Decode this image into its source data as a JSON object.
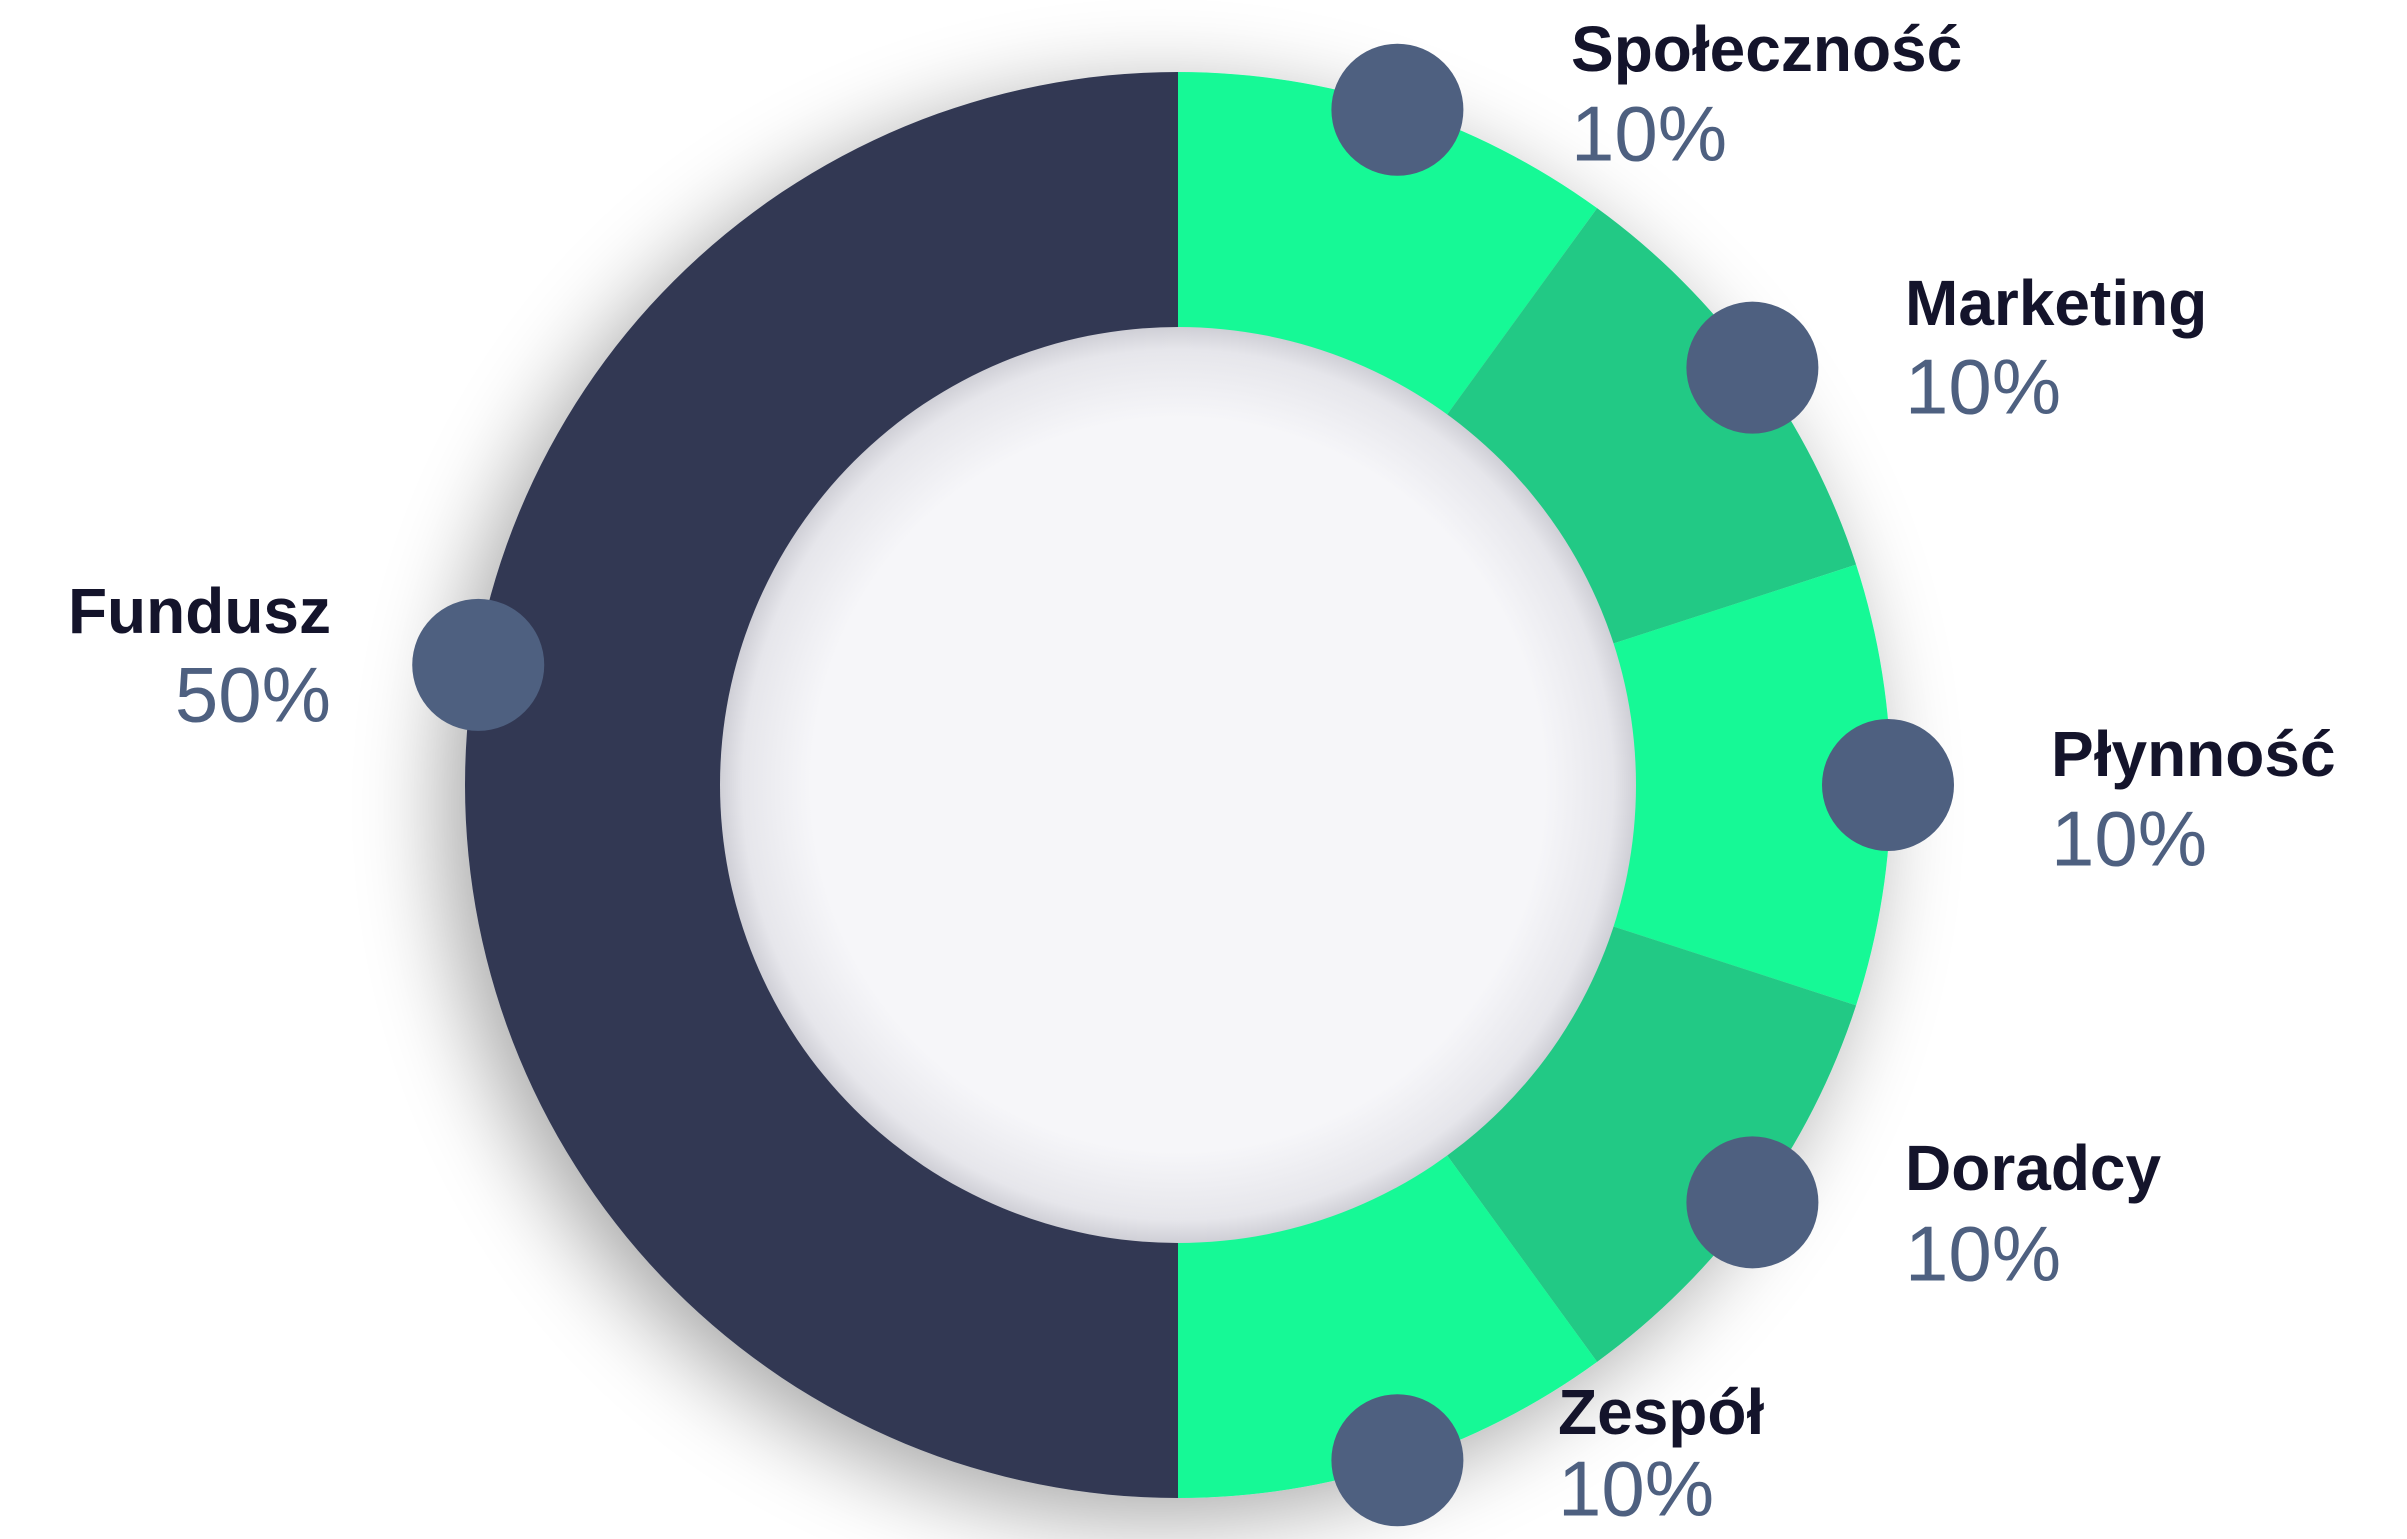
{
  "chart_data": {
    "type": "pie",
    "categories": [
      "Społeczność",
      "Marketing",
      "Płynność",
      "Doradcy",
      "Zespół",
      "Fundusz"
    ],
    "values": [
      10,
      10,
      10,
      10,
      10,
      50
    ],
    "value_labels": [
      "10%",
      "10%",
      "10%",
      "10%",
      "10%",
      "50%"
    ],
    "colors": [
      "#14f996",
      "#22c985",
      "#14f996",
      "#22c985",
      "#14f996",
      "#313853"
    ]
  }
}
